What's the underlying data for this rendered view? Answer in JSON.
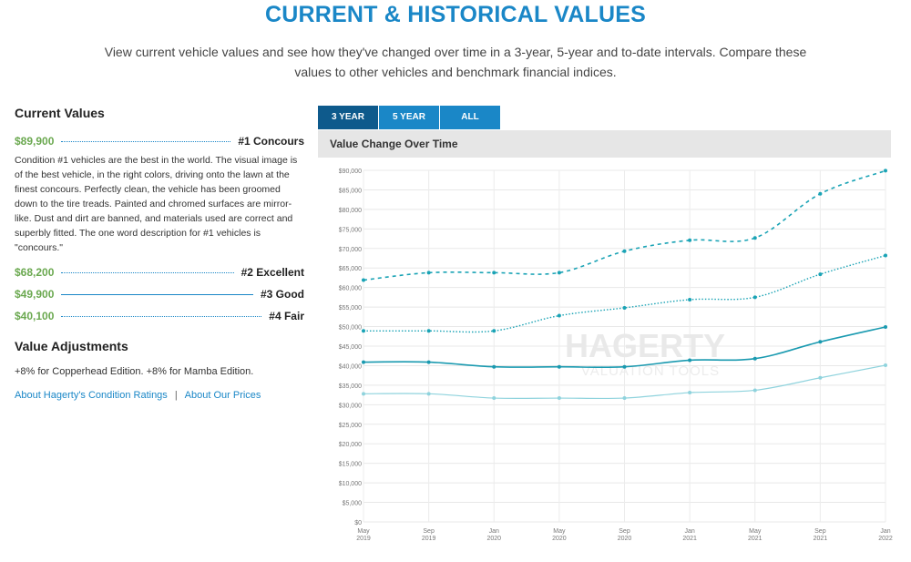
{
  "page": {
    "title": "CURRENT & HISTORICAL VALUES",
    "intro": "View current vehicle values and see how they've changed over time in a 3-year, 5-year and to-date intervals. Compare these values to other vehicles and benchmark financial indices."
  },
  "current_values": {
    "heading": "Current Values",
    "items": [
      {
        "price": "$89,900",
        "condition": "#1 Concours",
        "leader": "dotted"
      },
      {
        "price": "$68,200",
        "condition": "#2 Excellent",
        "leader": "dotted"
      },
      {
        "price": "$49,900",
        "condition": "#3 Good",
        "leader": "solid"
      },
      {
        "price": "$40,100",
        "condition": "#4 Fair",
        "leader": "dotted"
      }
    ],
    "description": "Condition #1 vehicles are the best in the world. The visual image is of the best vehicle, in the right colors, driving onto the lawn at the finest concours. Perfectly clean, the vehicle has been groomed down to the tire treads. Painted and chromed surfaces are mirror-like. Dust and dirt are banned, and materials used are correct and superbly fitted. The one word description for #1 vehicles is \"concours.\""
  },
  "value_adjustments": {
    "heading": "Value Adjustments",
    "text": "+8% for Copperhead Edition. +8% for Mamba Edition."
  },
  "links": {
    "condition_ratings": "About Hagerty's Condition Ratings",
    "separator": "|",
    "prices": "About Our Prices"
  },
  "tabs": [
    {
      "label": "3 YEAR",
      "active": true
    },
    {
      "label": "5 YEAR",
      "active": false
    },
    {
      "label": "ALL",
      "active": false
    }
  ],
  "chart_header": "Value Change Over Time",
  "watermark": {
    "line1": "HAGERTY",
    "line2": "VALUATION TOOLS"
  },
  "colors": {
    "accent": "#1a87c7",
    "tab_active": "#0e5a8c",
    "price_green": "#6aa84f",
    "series": "#1aa3b5"
  },
  "chart_data": {
    "type": "line",
    "title": "Value Change Over Time",
    "x": [
      "May 2019",
      "Sep 2019",
      "Jan 2020",
      "May 2020",
      "Sep 2020",
      "Jan 2021",
      "May 2021",
      "Sep 2021",
      "Jan 2022"
    ],
    "x_ticks": [
      {
        "month": "May",
        "year": "2019"
      },
      {
        "month": "Sep",
        "year": "2019"
      },
      {
        "month": "Jan",
        "year": "2020"
      },
      {
        "month": "May",
        "year": "2020"
      },
      {
        "month": "Sep",
        "year": "2020"
      },
      {
        "month": "Jan",
        "year": "2021"
      },
      {
        "month": "May",
        "year": "2021"
      },
      {
        "month": "Sep",
        "year": "2021"
      },
      {
        "month": "Jan",
        "year": "2022"
      }
    ],
    "ylim": [
      0,
      90000
    ],
    "y_tick_labels": [
      "$0",
      "$5,000",
      "$10,000",
      "$15,000",
      "$20,000",
      "$25,000",
      "$30,000",
      "$35,000",
      "$40,000",
      "$45,000",
      "$50,000",
      "$55,000",
      "$60,000",
      "$65,000",
      "$70,000",
      "$75,000",
      "$80,000",
      "$85,000",
      "$90,000"
    ],
    "grid": true,
    "series": [
      {
        "condition": "#1 Concours",
        "style": "dashed",
        "color": "#1aa3b5",
        "values": [
          61900,
          63800,
          63800,
          63800,
          69300,
          72100,
          72700,
          84000,
          89900
        ]
      },
      {
        "condition": "#2 Excellent",
        "style": "dotted",
        "color": "#1aa3b5",
        "values": [
          48900,
          48900,
          48900,
          52800,
          54800,
          56900,
          57500,
          63400,
          68200
        ]
      },
      {
        "condition": "#3 Good",
        "style": "solid",
        "color": "#1a9ab0",
        "values": [
          40900,
          40900,
          39700,
          39700,
          39700,
          41400,
          41800,
          46100,
          49900
        ]
      },
      {
        "condition": "#4 Fair",
        "style": "solid-light",
        "color": "#8fd3dd",
        "values": [
          32800,
          32800,
          31700,
          31700,
          31700,
          33100,
          33700,
          36900,
          40100
        ]
      }
    ]
  }
}
